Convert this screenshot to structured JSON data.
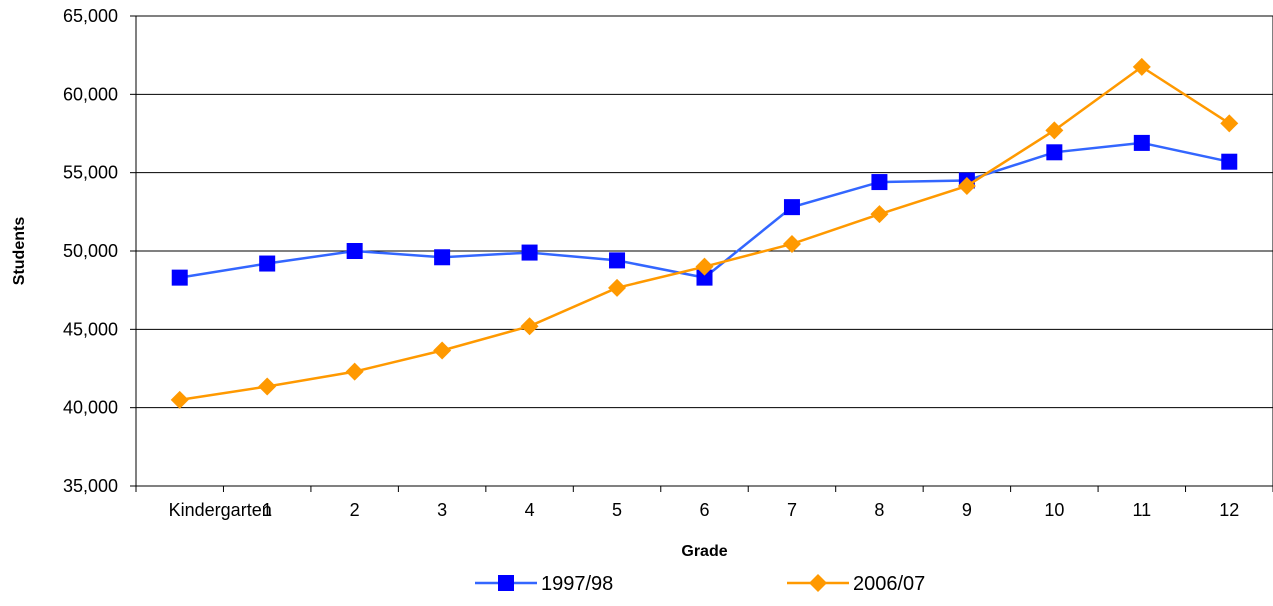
{
  "chart_data": {
    "type": "line",
    "title": "",
    "xlabel": "Grade",
    "ylabel": "Students",
    "categories": [
      "Kindergarten",
      "1",
      "2",
      "3",
      "4",
      "5",
      "6",
      "7",
      "8",
      "9",
      "10",
      "11",
      "12"
    ],
    "ylim": [
      35000,
      65000
    ],
    "yticks": [
      35000,
      40000,
      45000,
      50000,
      55000,
      60000,
      65000
    ],
    "ytick_labels": [
      "35,000",
      "40,000",
      "45,000",
      "50,000",
      "55,000",
      "60,000",
      "65,000"
    ],
    "grid": true,
    "legend_position": "bottom",
    "series": [
      {
        "name": "1997/98",
        "color": "#3366ff",
        "marker": "square",
        "values": [
          48300,
          49200,
          50000,
          49600,
          49900,
          49400,
          48300,
          52800,
          54400,
          54500,
          56300,
          56900,
          55700
        ]
      },
      {
        "name": "2006/07",
        "color": "#ff9900",
        "marker": "diamond",
        "values": [
          40500,
          41350,
          42300,
          43650,
          45200,
          47650,
          49000,
          50450,
          52350,
          54150,
          57700,
          61750,
          58150
        ]
      }
    ]
  }
}
